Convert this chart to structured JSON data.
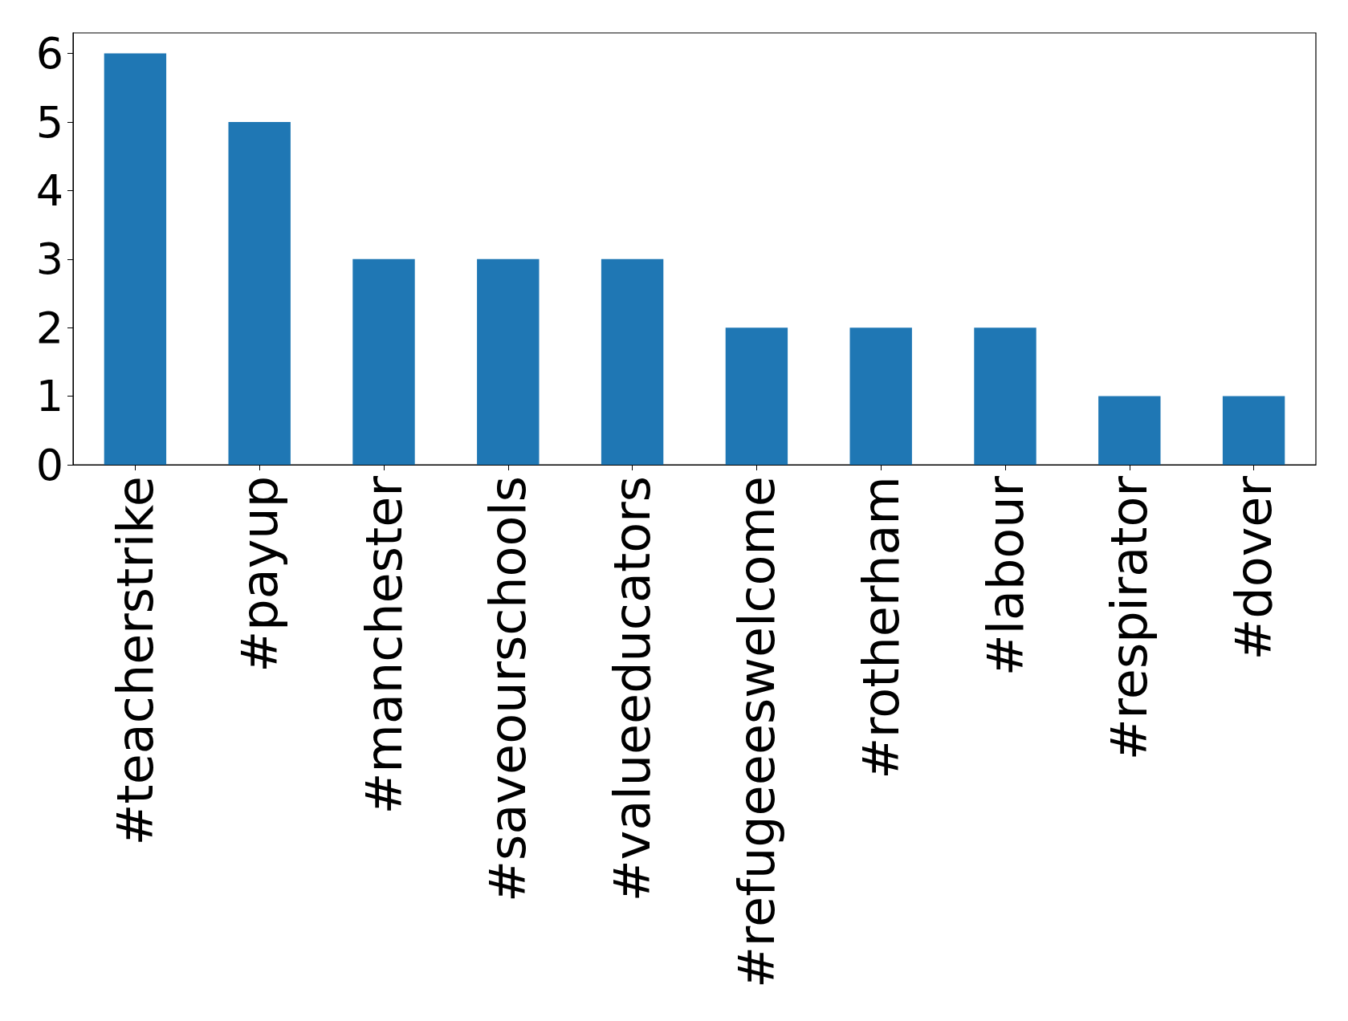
{
  "chart_data": {
    "type": "bar",
    "categories": [
      "#teacherstrike",
      "#payup",
      "#manchester",
      "#saveourschools",
      "#valueeducators",
      "#refugeeeswelcome",
      "#rotherham",
      "#labour",
      "#respirator",
      "#dover"
    ],
    "values": [
      6,
      5,
      3,
      3,
      3,
      2,
      2,
      2,
      1,
      1
    ],
    "color": "#1f77b4",
    "ylim": [
      0,
      6.3
    ],
    "yticks": [
      0,
      1,
      2,
      3,
      4,
      5,
      6
    ],
    "grid": false
  }
}
